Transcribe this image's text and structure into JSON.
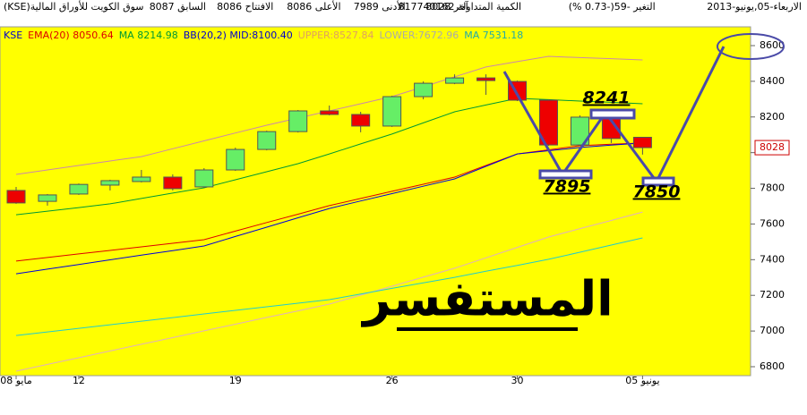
{
  "header": {
    "date": "الاربعاء-05,يونيو-2013",
    "title": "سوق الكويت للأوراق المالية(KSE)",
    "stats": [
      "السابق 8087",
      "الافتتاح 8086",
      "الأعلى 8086",
      "الأدنى 7989",
      "آخر 8028",
      "الكمية المتداولة 817740162",
      "التغير -59(-0.73 %)"
    ]
  },
  "chart_data": {
    "type": "candlestick",
    "categories": [
      "08 مايو",
      null,
      "12",
      null,
      null,
      null,
      null,
      "19",
      null,
      null,
      null,
      null,
      "26",
      null,
      null,
      null,
      "30",
      null,
      null,
      null,
      "05 يونيو"
    ],
    "open": [
      7788,
      7727,
      7768,
      7818,
      7838,
      7863,
      7808,
      7903,
      8018,
      8118,
      8234,
      8214,
      8149,
      8314,
      8389,
      8419,
      8399,
      8294,
      8043,
      8199,
      8086
    ],
    "high": [
      7808,
      7768,
      7827,
      7848,
      7903,
      7878,
      7913,
      8028,
      8123,
      8239,
      8264,
      8229,
      8319,
      8399,
      8439,
      8439,
      8404,
      8299,
      8209,
      8224,
      8086
    ],
    "low": [
      7713,
      7703,
      7763,
      7788,
      7833,
      7788,
      7803,
      7898,
      8013,
      8113,
      8209,
      8114,
      8144,
      8299,
      8384,
      8324,
      8289,
      8038,
      8038,
      8054,
      7989
    ],
    "close": [
      7718,
      7763,
      7822,
      7843,
      7863,
      7798,
      7903,
      8018,
      8118,
      8234,
      8214,
      8149,
      8314,
      8389,
      8419,
      8404,
      8294,
      8043,
      8199,
      8079,
      8028
    ],
    "up_color": "#66ee66",
    "down_color": "#ee0000",
    "series": [
      {
        "color": "#cc88aa",
        "values": [
          7878,
          7903,
          7928,
          7953,
          7978,
          8022,
          8066,
          8110,
          8154,
          8194,
          8234,
          8274,
          8314,
          8369,
          8425,
          8480,
          8510,
          8540,
          8533,
          8527,
          8520
        ]
      },
      {
        "color": "#009933",
        "values": [
          7652,
          7672,
          7692,
          7713,
          7743,
          7773,
          7803,
          7848,
          7893,
          7938,
          7993,
          8049,
          8104,
          8167,
          8229,
          8267,
          8304,
          8297,
          8289,
          8282,
          8274
        ]
      },
      {
        "color": "#dd0000",
        "values": [
          7392,
          7412,
          7432,
          7452,
          7472,
          7492,
          7512,
          7560,
          7608,
          7655,
          7703,
          7743,
          7783,
          7823,
          7863,
          7928,
          7993,
          8016,
          8039,
          8047,
          8054
        ]
      },
      {
        "color": "#0000dd",
        "values": [
          7321,
          7347,
          7373,
          7399,
          7425,
          7451,
          7477,
          7530,
          7582,
          7635,
          7687,
          7729,
          7770,
          7812,
          7853,
          7923,
          7993,
          8011,
          8029,
          8042,
          8054
        ]
      },
      {
        "color": "#e0b0c0",
        "values": [
          6775,
          6813,
          6850,
          6888,
          6926,
          6963,
          7001,
          7038,
          7076,
          7113,
          7151,
          7201,
          7251,
          7302,
          7352,
          7410,
          7469,
          7527,
          7574,
          7620,
          7667
        ]
      },
      {
        "color": "#22cccc",
        "values": [
          6975,
          6995,
          7015,
          7035,
          7055,
          7075,
          7096,
          7116,
          7136,
          7156,
          7176,
          7207,
          7239,
          7270,
          7301,
          7335,
          7368,
          7402,
          7442,
          7482,
          7522
        ]
      }
    ],
    "legend": [
      {
        "text": "KSE",
        "color": "#0000cc"
      },
      {
        "text": "EMA(20) 8050.64",
        "color": "#dd0000"
      },
      {
        "text": "MA 8214.98",
        "color": "#009933"
      },
      {
        "text": "BB(20,2) MID:8100.40",
        "color": "#0000cc"
      },
      {
        "text": "UPPER:8527.84",
        "color": "#e0a060"
      },
      {
        "text": "LOWER:7672.96",
        "color": "#aaaaaa"
      },
      {
        "text": "MA 7531.18",
        "color": "#22aaaa"
      }
    ],
    "last_price": 8028,
    "ylim": [
      6750,
      8705
    ],
    "yticks": [
      6800,
      7000,
      7200,
      7400,
      7600,
      7800,
      8000,
      8200,
      8400,
      8600
    ],
    "annotations": [
      "8241",
      "7895",
      "7850",
      "المستفسر"
    ]
  }
}
